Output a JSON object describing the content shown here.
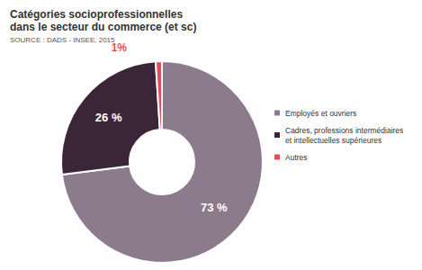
{
  "chart_data": {
    "type": "pie",
    "title": "Catégories socioprofessionnelles\ndans le secteur du commerce (et sc)",
    "subtitle": "SOURCE : DADS - INSEE, 2015",
    "categories": [
      "Employés et ouvriers",
      "Cadres, professions intermédiaires\net intellectuelles supérieures",
      "Autres"
    ],
    "values": [
      73,
      26,
      1
    ],
    "value_labels": [
      "73 %",
      "26 %",
      "1%"
    ],
    "colors": [
      "#8c7b8c",
      "#3b2639",
      "#e84a5a"
    ],
    "data_labels": true,
    "legend": "right"
  }
}
